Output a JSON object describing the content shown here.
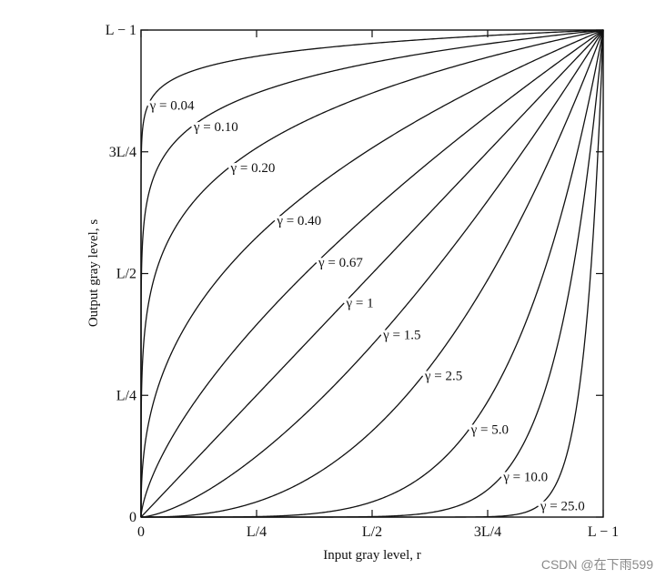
{
  "chart_data": {
    "type": "line",
    "xlabel": "Input gray level, r",
    "ylabel": "Output gray level, s",
    "xlim": [
      0,
      1
    ],
    "ylim": [
      0,
      1
    ],
    "x_ticks": [
      {
        "value": 0,
        "label": "0"
      },
      {
        "value": 0.25,
        "label": "L/4"
      },
      {
        "value": 0.5,
        "label": "L/2"
      },
      {
        "value": 0.75,
        "label": "3L/4"
      },
      {
        "value": 1,
        "label": "L − 1"
      }
    ],
    "y_ticks": [
      {
        "value": 0,
        "label": "0"
      },
      {
        "value": 0.25,
        "label": "L/4"
      },
      {
        "value": 0.5,
        "label": "L/2"
      },
      {
        "value": 0.75,
        "label": "3L/4"
      },
      {
        "value": 1,
        "label": "L − 1"
      }
    ],
    "grid": false,
    "function": "s = r^gamma",
    "series": [
      {
        "gamma": 0.04,
        "name": "γ = 0.04"
      },
      {
        "gamma": 0.1,
        "name": "γ = 0.10"
      },
      {
        "gamma": 0.2,
        "name": "γ = 0.20"
      },
      {
        "gamma": 0.4,
        "name": "γ = 0.40"
      },
      {
        "gamma": 0.67,
        "name": "γ = 0.67"
      },
      {
        "gamma": 1,
        "name": "γ = 1"
      },
      {
        "gamma": 1.5,
        "name": "γ = 1.5"
      },
      {
        "gamma": 2.5,
        "name": "γ = 2.5"
      },
      {
        "gamma": 5.0,
        "name": "γ = 5.0"
      },
      {
        "gamma": 10.0,
        "name": "γ = 10.0"
      },
      {
        "gamma": 25.0,
        "name": "γ = 25.0"
      }
    ]
  },
  "watermark": "CSDN @在下雨599"
}
